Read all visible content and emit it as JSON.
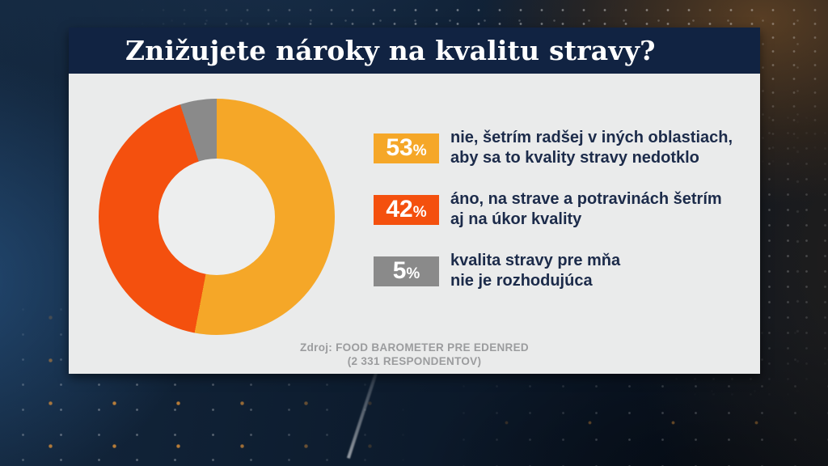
{
  "header": {
    "title": "Znižujete nároky na kvalitu stravy?"
  },
  "chart_data": {
    "type": "pie",
    "donut": true,
    "title": "Znižujete nároky na kvalitu stravy?",
    "start_angle_deg": 0,
    "direction": "clockwise",
    "values": [
      53,
      42,
      5
    ],
    "unit": "%",
    "labels": [
      "nie, šetrím radšej v iných oblastiach, aby sa to kvality stravy nedotklo",
      "áno, na strave a potravinách šetrím aj na úkor kvality",
      "kvalita stravy pre mňa nie je rozhodujúca"
    ],
    "colors": [
      "#F5A728",
      "#F4500E",
      "#8A8A8A"
    ],
    "legend_position": "right",
    "source": "Zdroj: FOOD BAROMETER PRE EDENRED (2 331 RESPONDENTOV)"
  },
  "legend": {
    "items": [
      {
        "pct_value": "53",
        "pct_unit": "%",
        "color": "#F5A728",
        "line1": "nie, šetrím radšej v iných oblastiach,",
        "line2": "aby sa to kvality stravy nedotklo"
      },
      {
        "pct_value": "42",
        "pct_unit": "%",
        "color": "#F4500E",
        "line1": "áno, na strave a potravinách šetrím",
        "line2": "aj na úkor kvality"
      },
      {
        "pct_value": "5",
        "pct_unit": "%",
        "color": "#8A8A8A",
        "line1": "kvalita stravy pre mňa",
        "line2": "nie je rozhodujúca"
      }
    ]
  },
  "source": {
    "line1": "Zdroj: FOOD BAROMETER PRE EDENRED",
    "line2": "(2 331 RESPONDENTOV)"
  },
  "colors": {
    "header_bg": "#112342",
    "card_bg": "#EAEBEB",
    "hole_bg": "#EDEEEE",
    "text_navy": "#1C2B4A",
    "source_gray": "#9B9C9E"
  }
}
